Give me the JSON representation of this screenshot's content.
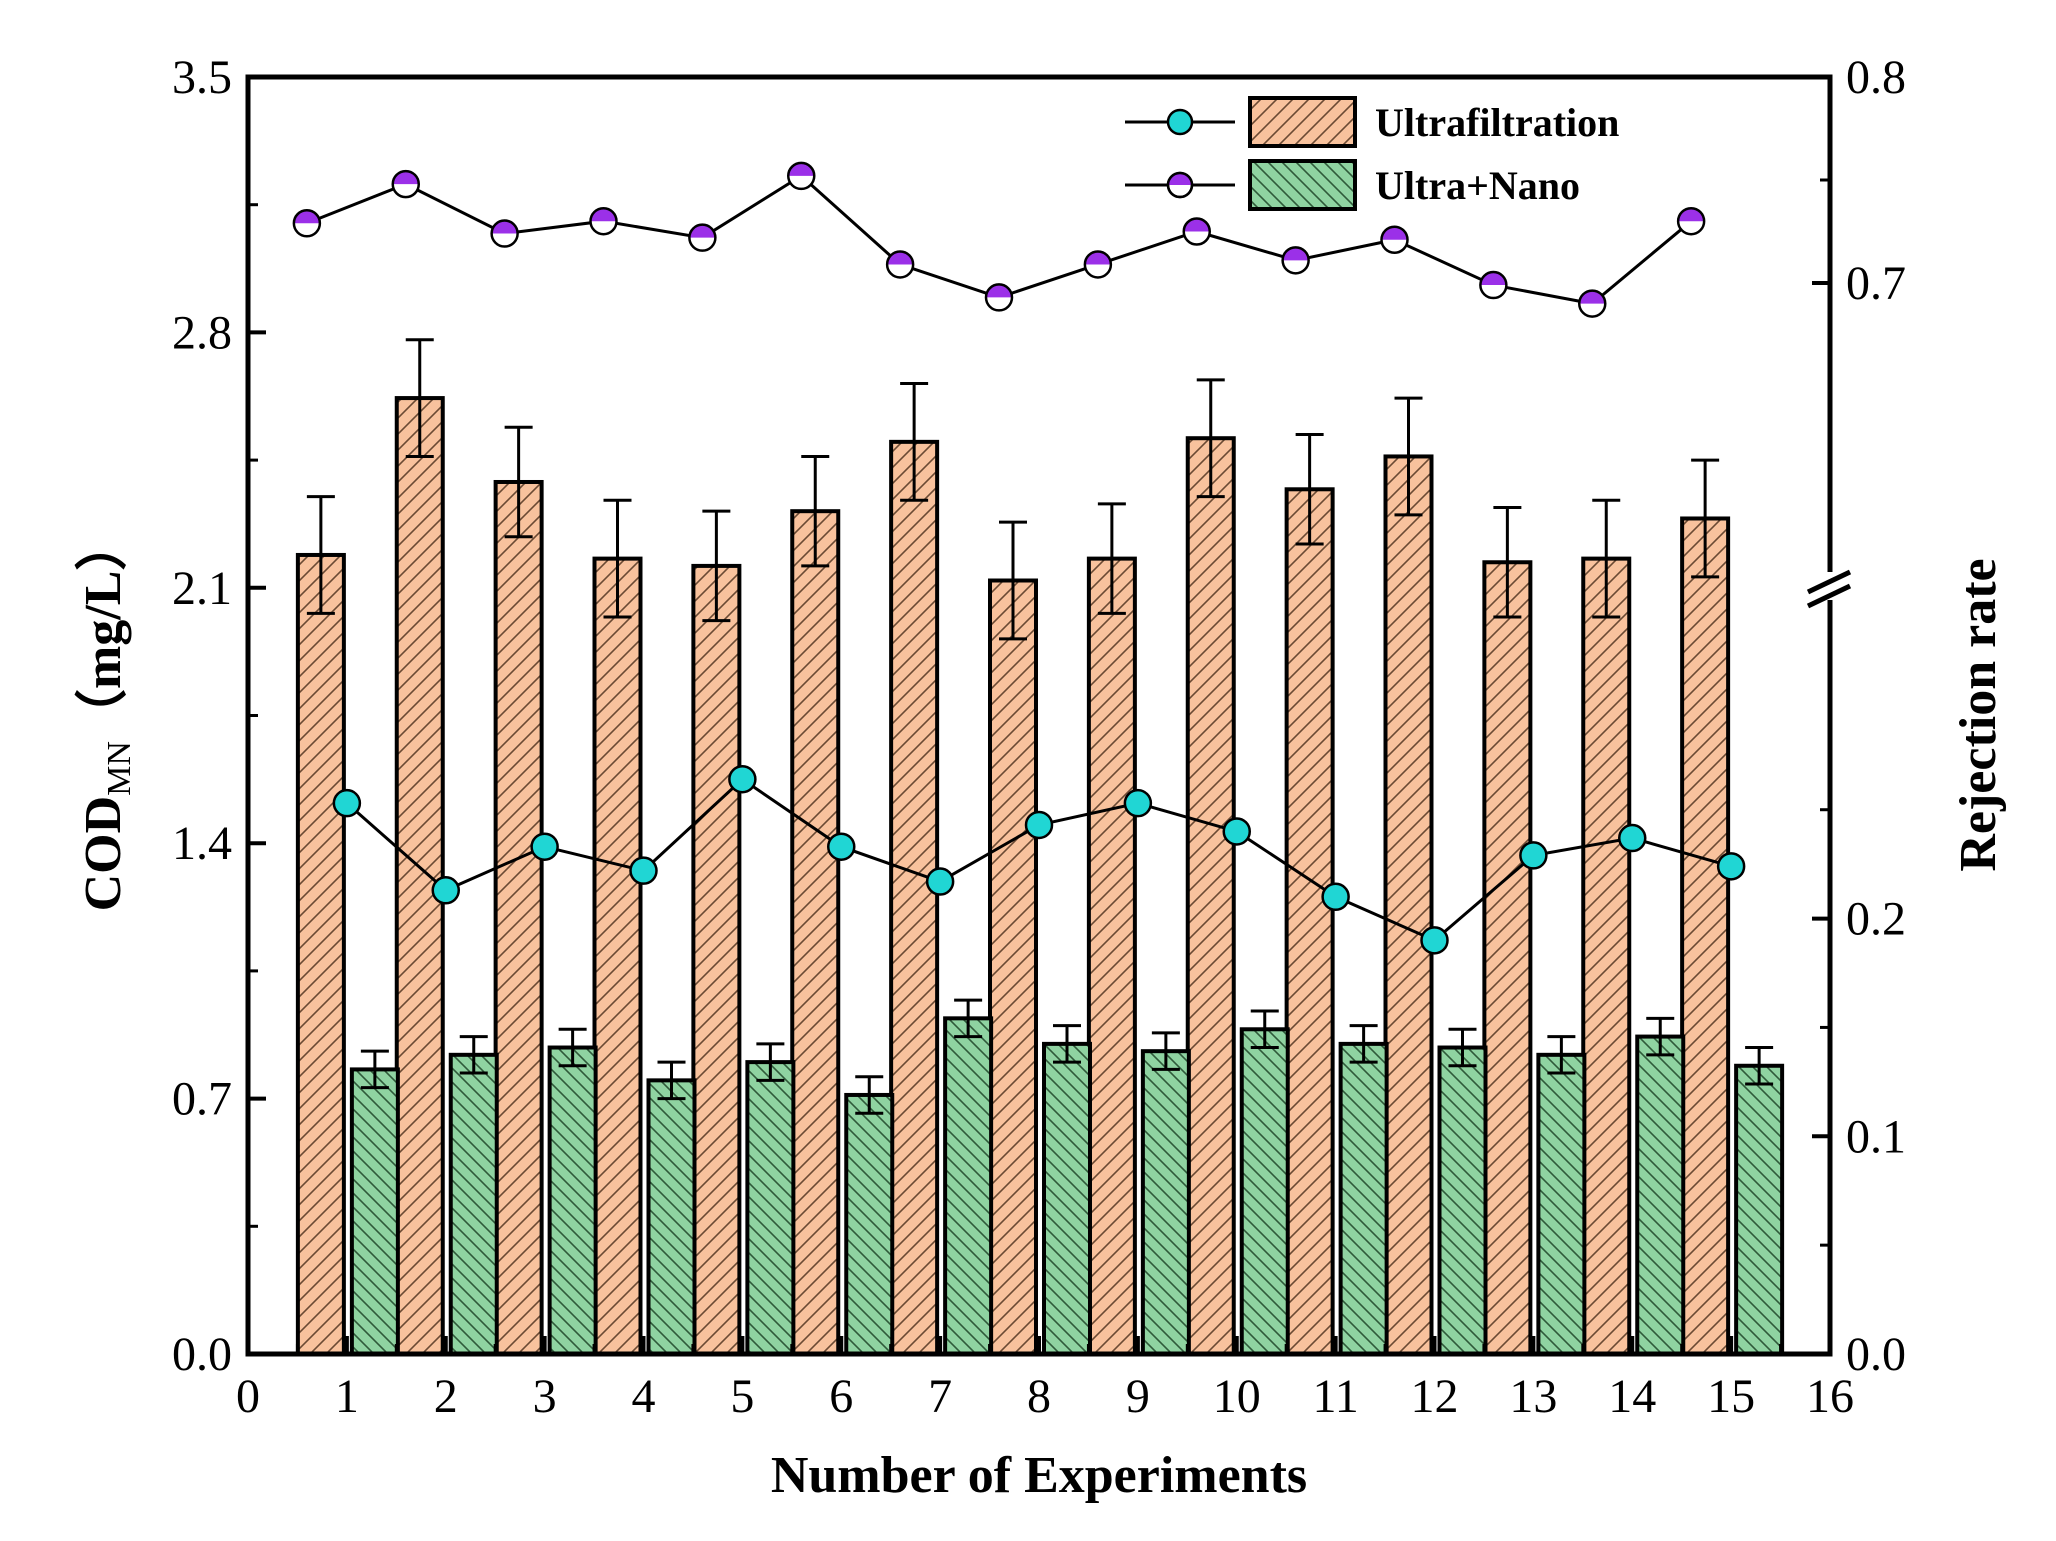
{
  "chart_data": {
    "type": "bar",
    "xlabel": "Number of Experiments",
    "ylabel": {
      "main": "COD",
      "subscript": "MN",
      "unit": "（mg/L）"
    },
    "y2label": "Rejection rate",
    "x_ticks": [
      "0",
      "1",
      "2",
      "3",
      "4",
      "5",
      "6",
      "7",
      "8",
      "9",
      "10",
      "11",
      "12",
      "13",
      "14",
      "15",
      "16"
    ],
    "xlim": [
      0,
      16
    ],
    "ylim": [
      0,
      3.5
    ],
    "y_ticks": [
      "0.0",
      "0.7",
      "1.4",
      "2.1",
      "2.8",
      "3.5"
    ],
    "y_tick_values": [
      0,
      0.7,
      1.4,
      2.1,
      2.8,
      3.5
    ],
    "y2_axis_break": true,
    "y2_ticks_lower": {
      "labels": [
        "0.0",
        "0.1",
        "0.2"
      ],
      "values": [
        0,
        0.1,
        0.2
      ],
      "range": [
        0,
        0.35
      ]
    },
    "y2_ticks_upper": {
      "labels": [
        "0.7",
        "0.8"
      ],
      "values": [
        0.7,
        0.8
      ],
      "range": [
        0.55,
        0.8
      ]
    },
    "categories": [
      1,
      2,
      3,
      4,
      5,
      6,
      7,
      8,
      9,
      10,
      11,
      12,
      13,
      14,
      15
    ],
    "bar_series": [
      {
        "name": "Ultrafiltration",
        "color": "#f8c29d",
        "values": [
          2.19,
          2.62,
          2.39,
          2.18,
          2.16,
          2.31,
          2.5,
          2.12,
          2.18,
          2.51,
          2.37,
          2.46,
          2.17,
          2.18,
          2.29
        ],
        "errors": [
          0.16,
          0.16,
          0.15,
          0.16,
          0.15,
          0.15,
          0.16,
          0.16,
          0.15,
          0.16,
          0.15,
          0.16,
          0.15,
          0.16,
          0.16
        ]
      },
      {
        "name": "Ultra+Nano",
        "color": "#8fd3a1",
        "values": [
          0.78,
          0.82,
          0.84,
          0.75,
          0.8,
          0.71,
          0.92,
          0.85,
          0.83,
          0.89,
          0.85,
          0.84,
          0.82,
          0.87,
          0.79
        ],
        "errors": [
          0.05,
          0.05,
          0.05,
          0.05,
          0.05,
          0.05,
          0.05,
          0.05,
          0.05,
          0.05,
          0.05,
          0.05,
          0.05,
          0.05,
          0.05
        ]
      }
    ],
    "line_series": [
      {
        "name": "Ultrafiltration",
        "marker_color": "#20d6d4",
        "axis": "right-lower",
        "values": [
          0.253,
          0.213,
          0.233,
          0.222,
          0.264,
          0.233,
          0.217,
          0.243,
          0.253,
          0.24,
          0.21,
          0.19,
          0.229,
          0.237,
          0.224
        ]
      },
      {
        "name": "Ultra+Nano",
        "marker_color": "#9b30e8",
        "axis": "right-upper",
        "values": [
          0.729,
          0.748,
          0.724,
          0.73,
          0.722,
          0.752,
          0.709,
          0.693,
          0.709,
          0.725,
          0.711,
          0.721,
          0.699,
          0.69,
          0.73
        ]
      }
    ],
    "legend": {
      "position": "top-right",
      "entries": [
        "Ultrafiltration",
        "Ultra+Nano"
      ]
    }
  }
}
